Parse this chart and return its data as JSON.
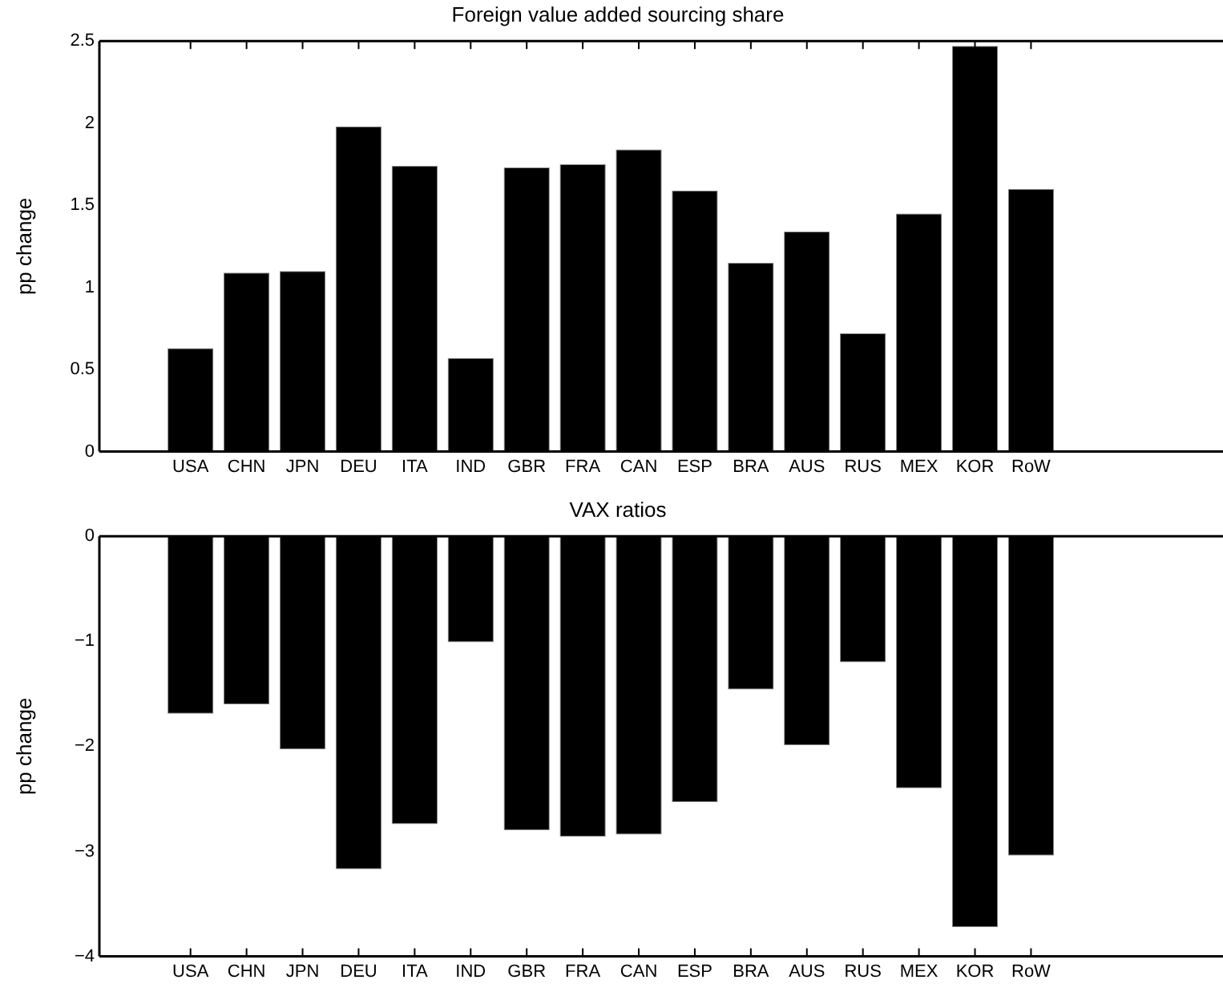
{
  "chart_data": [
    {
      "type": "bar",
      "title": "Foreign value added sourcing share",
      "ylabel": "pp change",
      "categories": [
        "USA",
        "CHN",
        "JPN",
        "DEU",
        "ITA",
        "IND",
        "GBR",
        "FRA",
        "CAN",
        "ESP",
        "BRA",
        "AUS",
        "RUS",
        "MEX",
        "KOR",
        "RoW"
      ],
      "values": [
        0.63,
        1.09,
        1.1,
        1.98,
        1.74,
        0.57,
        1.73,
        1.75,
        1.84,
        1.59,
        1.15,
        1.34,
        0.72,
        1.45,
        2.47,
        1.6
      ],
      "color": "#000000",
      "ylim": [
        0,
        2.5
      ],
      "yticks": [
        0,
        0.5,
        1,
        1.5,
        2,
        2.5
      ],
      "grid": false,
      "legend": false
    },
    {
      "type": "bar",
      "title": "VAX ratios",
      "ylabel": "pp change",
      "categories": [
        "USA",
        "CHN",
        "JPN",
        "DEU",
        "ITA",
        "IND",
        "GBR",
        "FRA",
        "CAN",
        "ESP",
        "BRA",
        "AUS",
        "RUS",
        "MEX",
        "KOR",
        "RoW"
      ],
      "values": [
        -1.69,
        -1.6,
        -2.03,
        -3.17,
        -2.74,
        -1.01,
        -2.8,
        -2.86,
        -2.84,
        -2.53,
        -1.46,
        -1.99,
        -1.2,
        -2.4,
        -3.72,
        -3.04
      ],
      "color": "#000000",
      "ylim": [
        -4,
        0
      ],
      "yticks": [
        -4,
        -3,
        -2,
        -1,
        0
      ],
      "grid": false,
      "legend": false
    }
  ]
}
